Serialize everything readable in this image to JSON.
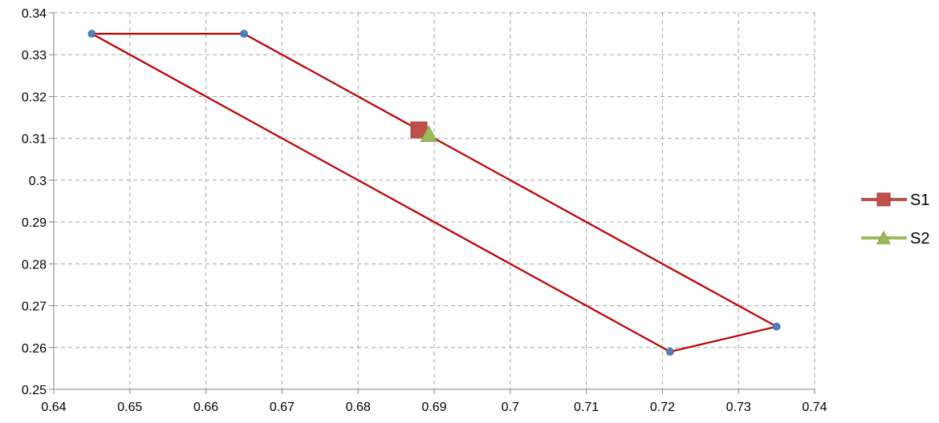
{
  "chart_data": {
    "type": "scatter",
    "title": "",
    "xlabel": "",
    "ylabel": "",
    "xlim": [
      0.64,
      0.74
    ],
    "ylim": [
      0.25,
      0.34
    ],
    "x_ticks": [
      0.64,
      0.65,
      0.66,
      0.67,
      0.68,
      0.69,
      0.7,
      0.71,
      0.72,
      0.73,
      0.74
    ],
    "y_ticks": [
      0.25,
      0.26,
      0.27,
      0.28,
      0.29,
      0.3,
      0.31,
      0.32,
      0.33,
      0.34
    ],
    "x_tick_labels": [
      "0.64",
      "0.65",
      "0.66",
      "0.67",
      "0.68",
      "0.69",
      "0.7",
      "0.71",
      "0.72",
      "0.73",
      "0.74"
    ],
    "y_tick_labels": [
      "0.25",
      "0.26",
      "0.27",
      "0.28",
      "0.29",
      "0.3",
      "0.31",
      "0.32",
      "0.33",
      "0.34"
    ],
    "grid": true,
    "legend_position": "right",
    "outline": {
      "color": "#c00000",
      "marker_color": "#4f81bd",
      "points": [
        {
          "x": 0.645,
          "y": 0.335
        },
        {
          "x": 0.665,
          "y": 0.335
        },
        {
          "x": 0.735,
          "y": 0.265
        },
        {
          "x": 0.721,
          "y": 0.259
        },
        {
          "x": 0.645,
          "y": 0.335
        }
      ]
    },
    "series": [
      {
        "name": "S1",
        "marker": "square",
        "color": "#c0504d",
        "points": [
          {
            "x": 0.688,
            "y": 0.312
          }
        ]
      },
      {
        "name": "S2",
        "marker": "triangle",
        "color": "#9bbb59",
        "points": [
          {
            "x": 0.6893,
            "y": 0.311
          }
        ]
      }
    ]
  }
}
